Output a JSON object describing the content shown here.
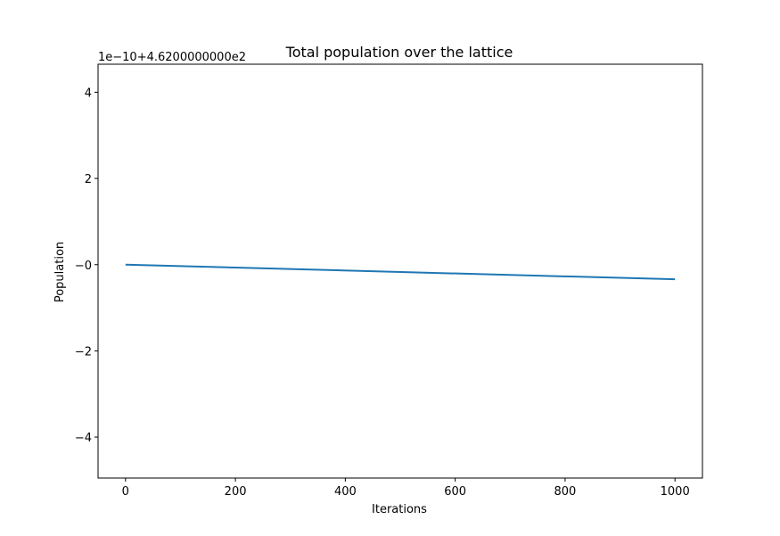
{
  "chart_data": {
    "type": "line",
    "title": "Total population over the lattice",
    "xlabel": "Iterations",
    "ylabel": "Population",
    "offset_label": "1e−10+4.6200000000e2",
    "xlim": [
      -50,
      1050
    ],
    "ylim": [
      -4.95,
      4.65
    ],
    "xticks": [
      0,
      200,
      400,
      600,
      800,
      1000
    ],
    "xtick_labels": [
      "0",
      "200",
      "400",
      "600",
      "800",
      "1000"
    ],
    "yticks": [
      -4,
      -2,
      0,
      2,
      4
    ],
    "ytick_labels": [
      "−4",
      "−2",
      "−0",
      "2",
      "4"
    ],
    "grid": false,
    "series": [
      {
        "color": "#1f77b4",
        "x": [
          0,
          1000
        ],
        "y": [
          0.0,
          -0.34
        ]
      }
    ]
  }
}
